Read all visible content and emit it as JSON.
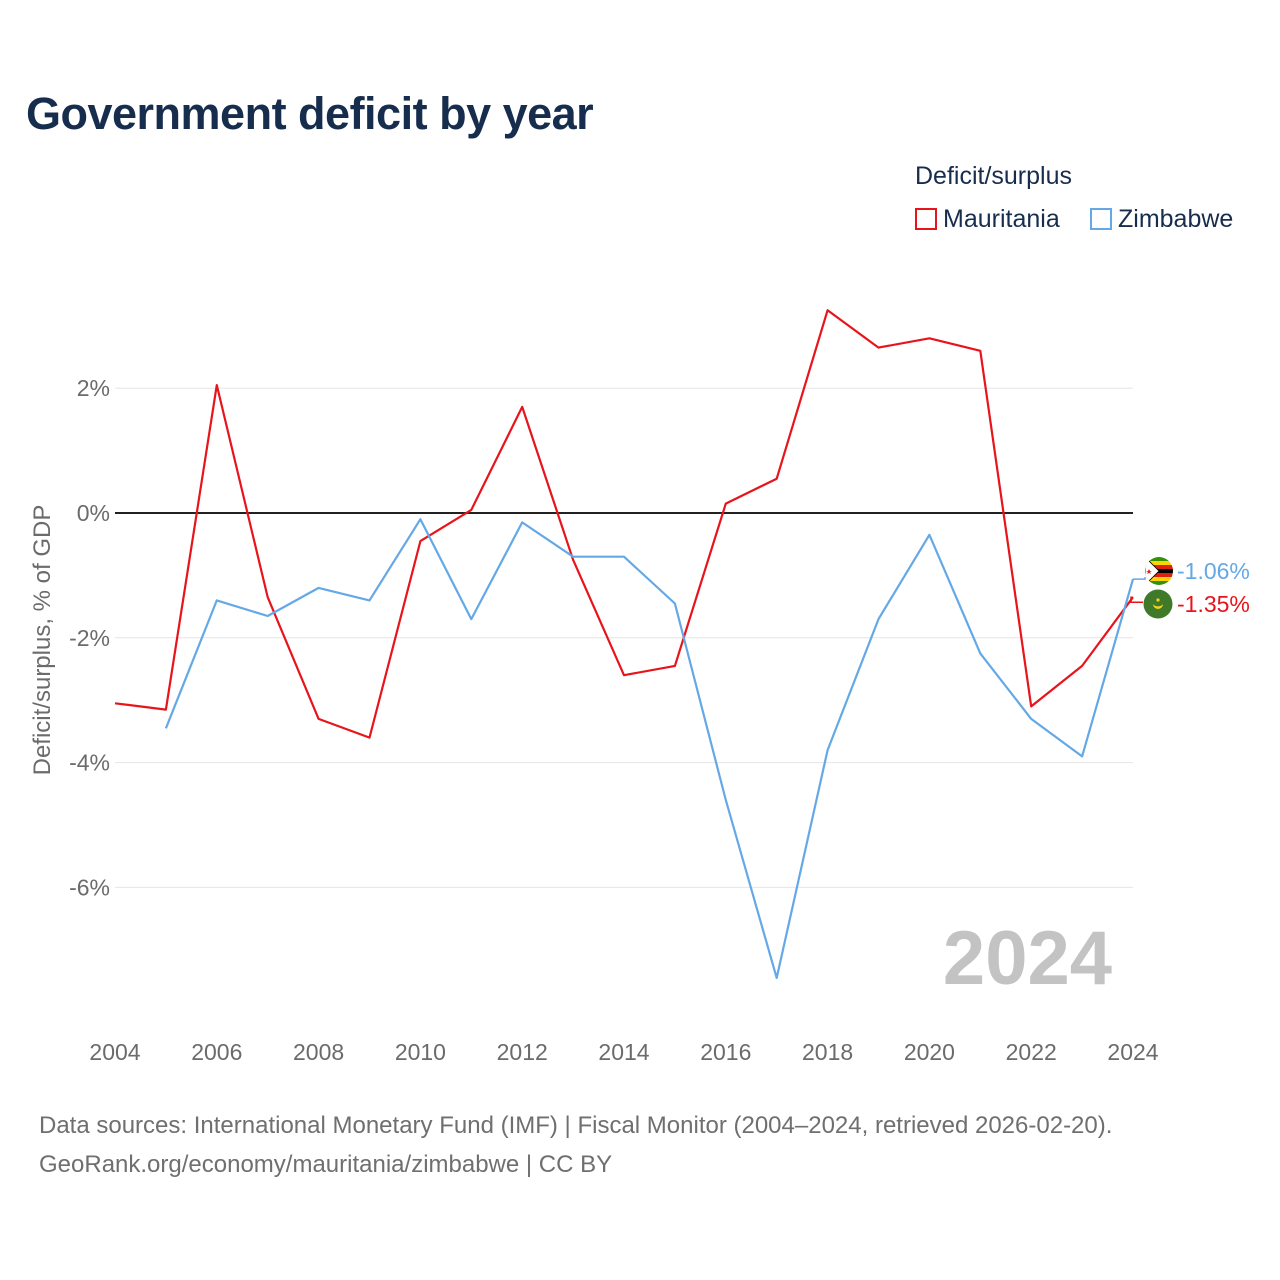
{
  "title": "Government deficit by year",
  "legend": {
    "title": "Deficit/surplus",
    "items": [
      {
        "name": "Mauritania",
        "color": "#e8141c"
      },
      {
        "name": "Zimbabwe",
        "color": "#64a8e6"
      }
    ]
  },
  "watermark_year": "2024",
  "footer": {
    "line1": "Data sources: International Monetary Fund (IMF) | Fiscal Monitor (2004–2024, retrieved 2026-02-20).",
    "line2": "GeoRank.org/economy/mauritania/zimbabwe | CC BY"
  },
  "chart_data": {
    "type": "line",
    "title": "Government deficit by year",
    "xlabel": "",
    "ylabel": "Deficit/surplus, % of GDP",
    "x": [
      2004,
      2005,
      2006,
      2007,
      2008,
      2009,
      2010,
      2011,
      2012,
      2013,
      2014,
      2015,
      2016,
      2017,
      2018,
      2019,
      2020,
      2021,
      2022,
      2023,
      2024
    ],
    "xlim": [
      2004,
      2024
    ],
    "ylim": [
      -8,
      4
    ],
    "x_ticks": [
      2004,
      2006,
      2008,
      2010,
      2012,
      2014,
      2016,
      2018,
      2020,
      2022,
      2024
    ],
    "y_ticks": [
      2,
      0,
      -2,
      -4,
      -6
    ],
    "y_tick_labels": [
      "2%",
      "0%",
      "-2%",
      "-4%",
      "-6%"
    ],
    "series": [
      {
        "name": "Mauritania",
        "color": "#e8141c",
        "values": [
          -3.05,
          -3.15,
          2.05,
          -1.35,
          -3.3,
          -3.6,
          -0.45,
          0.05,
          1.7,
          -0.75,
          -2.6,
          -2.45,
          0.15,
          0.55,
          3.25,
          2.65,
          2.8,
          2.6,
          -3.1,
          -2.45,
          -1.35
        ],
        "end_label": "-1.35%"
      },
      {
        "name": "Zimbabwe",
        "color": "#64a8e6",
        "values": [
          null,
          -3.45,
          -1.4,
          -1.65,
          -1.2,
          -1.4,
          -0.1,
          -1.7,
          -0.15,
          -0.7,
          -0.7,
          -1.45,
          -4.6,
          -7.45,
          -3.8,
          -1.7,
          -0.35,
          -2.25,
          -3.3,
          -3.9,
          -1.06
        ],
        "end_label": "-1.06%"
      }
    ]
  }
}
